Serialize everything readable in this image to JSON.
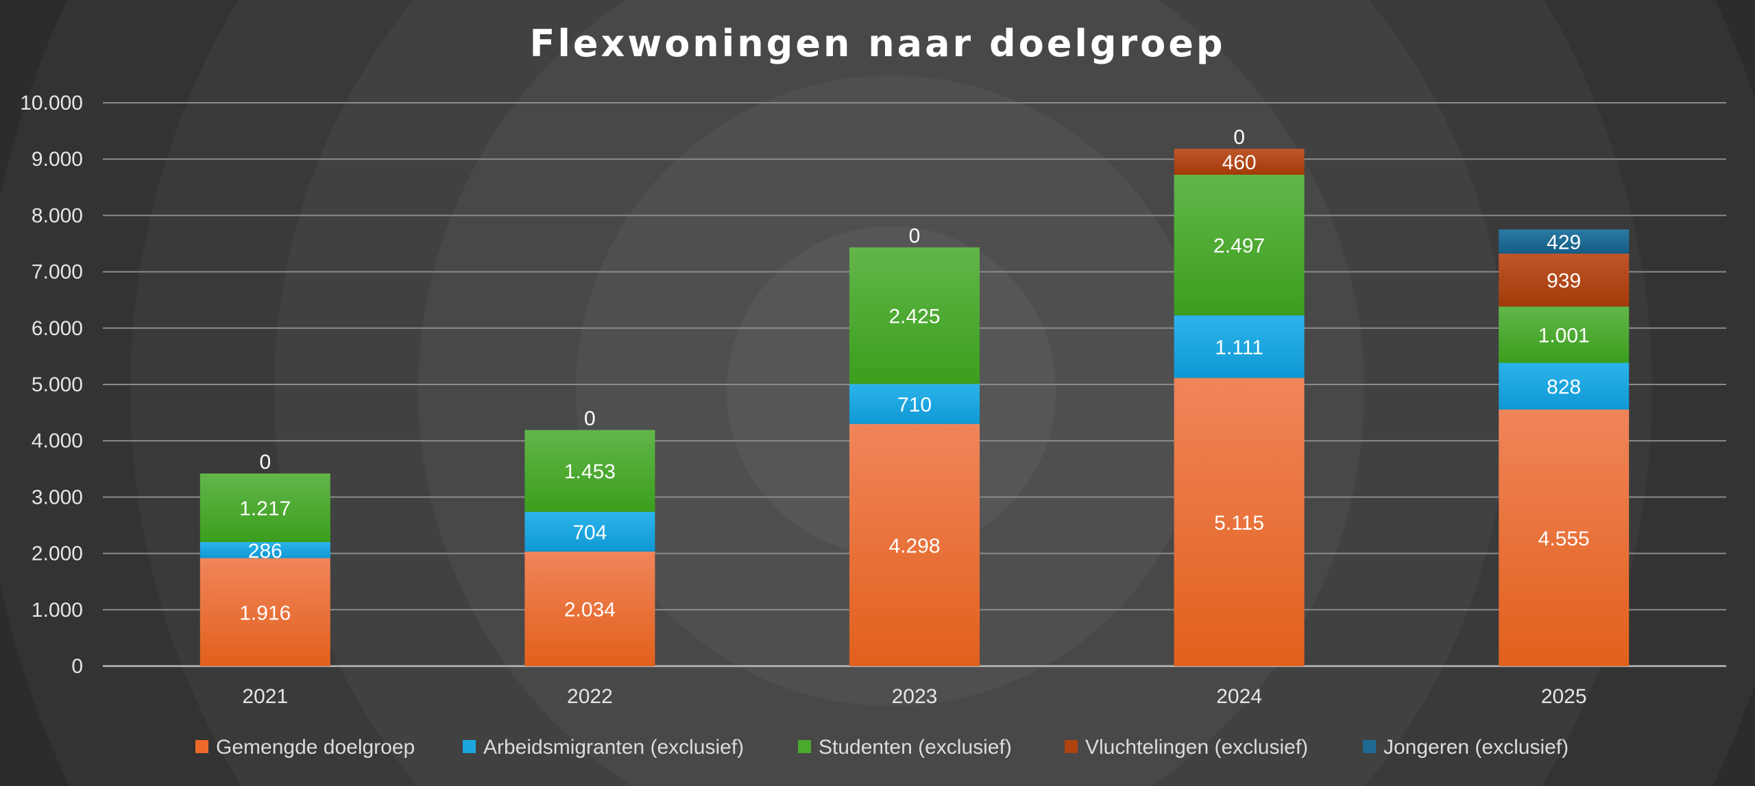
{
  "chart_data": {
    "type": "bar",
    "stacked": true,
    "title": "Flexwoningen naar doelgroep",
    "xlabel": "",
    "ylabel": "",
    "categories": [
      "2021",
      "2022",
      "2023",
      "2024",
      "2025"
    ],
    "ylim": [
      0,
      10000
    ],
    "yticks": [
      0,
      1000,
      2000,
      3000,
      4000,
      5000,
      6000,
      7000,
      8000,
      9000,
      10000
    ],
    "ytick_labels": [
      "0",
      "1.000",
      "2.000",
      "3.000",
      "4.000",
      "5.000",
      "6.000",
      "7.000",
      "8.000",
      "9.000",
      "10.000"
    ],
    "grid": true,
    "legend_position": "bottom",
    "series": [
      {
        "name": "Gemengde doelgroep",
        "color": "#ee6a2a",
        "values": [
          1916,
          2034,
          4298,
          5115,
          4555
        ],
        "labels": [
          "1.916",
          "2.034",
          "4.298",
          "5.115",
          "4.555"
        ]
      },
      {
        "name": "Arbeidsmigranten (exclusief)",
        "color": "#1ca6e0",
        "values": [
          286,
          704,
          710,
          1111,
          828
        ],
        "labels": [
          "286",
          "704",
          "710",
          "1.111",
          "828"
        ]
      },
      {
        "name": "Studenten (exclusief)",
        "color": "#4aaa2c",
        "values": [
          1217,
          1453,
          2425,
          2497,
          1001
        ],
        "labels": [
          "1.217",
          "1.453",
          "2.425",
          "2.497",
          "1.001"
        ]
      },
      {
        "name": "Vluchtelingen (exclusief)",
        "color": "#b0420f",
        "values": [
          0,
          0,
          0,
          460,
          939
        ],
        "labels": [
          "",
          "",
          "",
          "460",
          "939"
        ]
      },
      {
        "name": "Jongeren (exclusief)",
        "color": "#1d6a93",
        "values": [
          0,
          0,
          0,
          0,
          429
        ],
        "labels": [
          "0",
          "0",
          "0",
          "0",
          "429"
        ]
      }
    ]
  }
}
